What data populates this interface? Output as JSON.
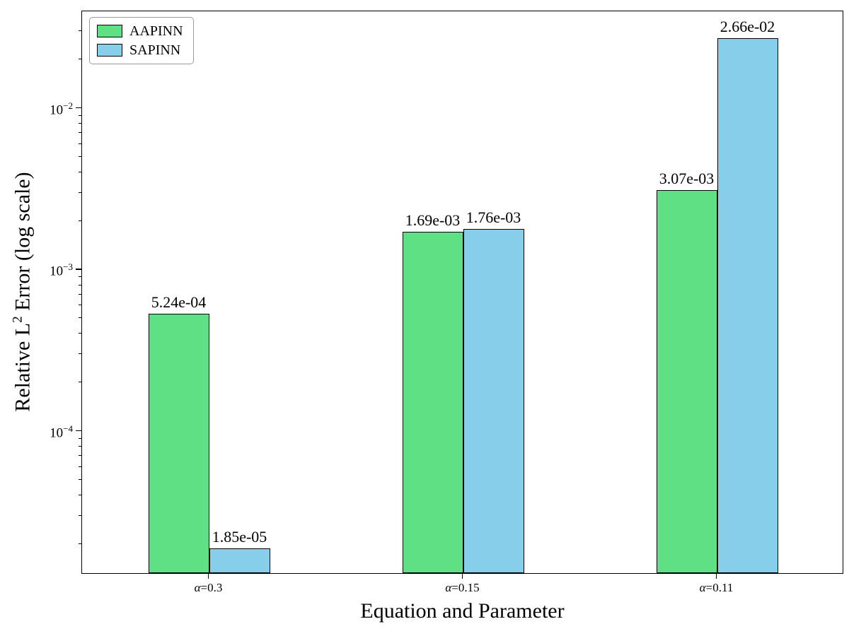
{
  "figure": {
    "xlabel": "Equation and Parameter",
    "ylabel_prefix": "Relative L",
    "ylabel_sup": "2",
    "ylabel_suffix": " Error (log scale)"
  },
  "legend": {
    "items": [
      {
        "label": "AAPINN",
        "color": "#5fe085"
      },
      {
        "label": "SAPINN",
        "color": "#87ceeb"
      }
    ]
  },
  "chart_data": {
    "type": "bar",
    "title": "",
    "xlabel": "Equation and Parameter",
    "ylabel": "Relative L^2 Error (log scale)",
    "yscale": "log",
    "grid": false,
    "legend_position": "upper-left",
    "categories": [
      "α=0.3",
      "α=0.15",
      "α=0.11"
    ],
    "series": [
      {
        "name": "AAPINN",
        "color": "#5fe085",
        "edge_color": "#000000",
        "values": [
          0.000524,
          0.00169,
          0.00307
        ],
        "labels": [
          "5.24e-04",
          "1.69e-03",
          "3.07e-03"
        ]
      },
      {
        "name": "SAPINN",
        "color": "#87ceeb",
        "edge_color": "#000000",
        "values": [
          1.85e-05,
          0.00176,
          0.0266
        ],
        "labels": [
          "1.85e-05",
          "1.76e-03",
          "2.66e-02"
        ]
      }
    ],
    "ylim": [
      1.3e-05,
      0.04
    ],
    "y_major_tick_exponents": [
      -4,
      -3,
      -2
    ]
  }
}
